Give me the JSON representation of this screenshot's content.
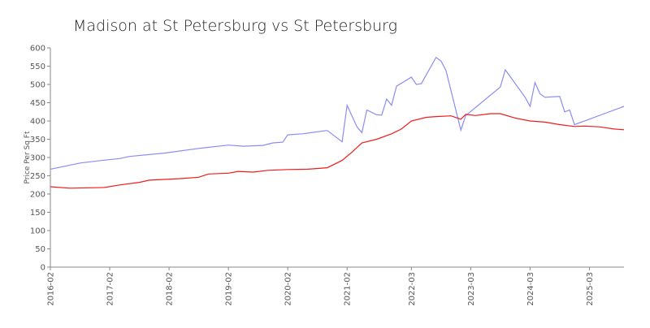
{
  "chart_data": {
    "type": "line",
    "title": "Madison at St Petersburg vs St Petersburg",
    "y_label": "Price Per Sq Ft",
    "xlim": [
      "2016-02",
      "2025-10"
    ],
    "xticks": [
      "2016-02",
      "2017-02",
      "2018-02",
      "2019-02",
      "2020-02",
      "2021-02",
      "2022-03",
      "2023-03",
      "2024-03",
      "2025-03"
    ],
    "ylim": [
      0,
      600
    ],
    "yticks": [
      0,
      50,
      100,
      150,
      200,
      250,
      300,
      350,
      400,
      450,
      500,
      550,
      600
    ],
    "series": [
      {
        "color": "#8b8bf5",
        "x": [
          "2016-02",
          "2016-08",
          "2017-01",
          "2017-04",
          "2017-06",
          "2018-01",
          "2018-08",
          "2019-02",
          "2019-05",
          "2019-09",
          "2019-11",
          "2020-01",
          "2020-02",
          "2020-05",
          "2020-10",
          "2021-01",
          "2021-02",
          "2021-04",
          "2021-05",
          "2021-06",
          "2021-08",
          "2021-09",
          "2021-10",
          "2021-11",
          "2021-12",
          "2022-03",
          "2022-04",
          "2022-05",
          "2022-08",
          "2022-09",
          "2022-10",
          "2023-01",
          "2023-02",
          "2023-09",
          "2023-10",
          "2024-02",
          "2024-03",
          "2024-04",
          "2024-05",
          "2024-06",
          "2024-09",
          "2024-10",
          "2024-11",
          "2024-12",
          "2025-03",
          "2025-06",
          "2025-10"
        ],
        "values": [
          268,
          285,
          293,
          297,
          303,
          312,
          325,
          334,
          331,
          333,
          340,
          342,
          362,
          365,
          374,
          343,
          443,
          384,
          368,
          430,
          417,
          416,
          460,
          443,
          495,
          520,
          500,
          502,
          574,
          564,
          538,
          375,
          415,
          493,
          540,
          465,
          440,
          505,
          475,
          465,
          467,
          425,
          430,
          390,
          405,
          420,
          440
        ]
      },
      {
        "color": "#ee1c1c",
        "x": [
          "2016-02",
          "2016-06",
          "2016-10",
          "2017-01",
          "2017-04",
          "2017-08",
          "2017-10",
          "2018-01",
          "2018-04",
          "2018-08",
          "2018-10",
          "2019-02",
          "2019-04",
          "2019-07",
          "2019-10",
          "2020-02",
          "2020-06",
          "2020-10",
          "2021-01",
          "2021-03",
          "2021-05",
          "2021-08",
          "2021-11",
          "2022-01",
          "2022-03",
          "2022-06",
          "2022-08",
          "2022-11",
          "2023-01",
          "2023-02",
          "2023-04",
          "2023-07",
          "2023-09",
          "2023-12",
          "2024-03",
          "2024-06",
          "2024-09",
          "2024-12",
          "2025-02",
          "2025-05",
          "2025-08",
          "2025-10"
        ],
        "values": [
          220,
          216,
          217,
          218,
          225,
          232,
          238,
          240,
          242,
          246,
          255,
          257,
          262,
          260,
          265,
          267,
          268,
          272,
          292,
          315,
          340,
          350,
          365,
          378,
          400,
          410,
          412,
          414,
          405,
          418,
          415,
          420,
          420,
          408,
          400,
          397,
          390,
          385,
          386,
          384,
          378,
          376
        ]
      }
    ]
  }
}
